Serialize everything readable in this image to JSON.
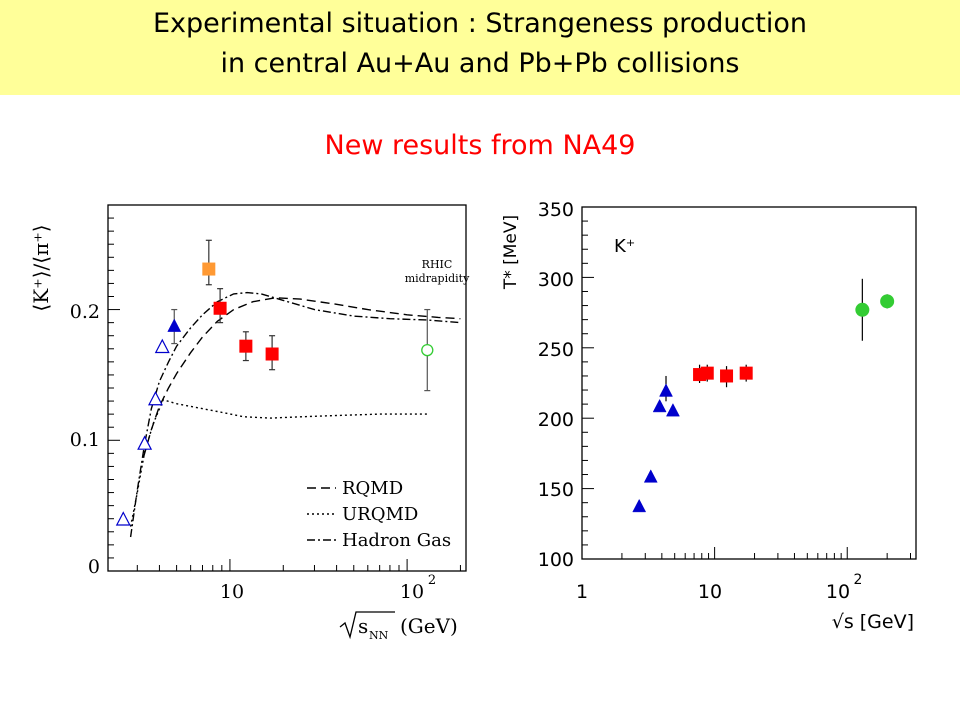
{
  "header": {
    "title_line1": "Experimental situation : Strangeness production",
    "title_line2": "in central Au+Au and  Pb+Pb collisions",
    "subtitle": "New results from  NA49"
  },
  "colors": {
    "header_bg": "#ffff99",
    "subtitle": "#ff0000",
    "red": "#ff0000",
    "orange": "#ff9933",
    "blue": "#0000cc",
    "green": "#33cc33"
  },
  "chart_data": [
    {
      "type": "scatter",
      "xscale": "log",
      "xlabel_root": "s",
      "xlabel_sub": "NN",
      "xlabel_unit": "(GeV)",
      "ylabel": "⟨K⁺⟩/⟨π⁺⟩",
      "xlim": [
        2.05,
        215
      ],
      "ylim": [
        0,
        0.28
      ],
      "x_ticks": [
        {
          "value": 10,
          "label": "10"
        },
        {
          "value": 100,
          "label": "10",
          "exp": "2"
        }
      ],
      "y_ticks": [
        {
          "value": 0,
          "label": "0"
        },
        {
          "value": 0.1,
          "label": "0.1"
        },
        {
          "value": 0.2,
          "label": "0.2"
        }
      ],
      "annotation": [
        "RHIC",
        "midrapidity"
      ],
      "legend_position": "bottom-right",
      "legend": [
        {
          "style": "dashed",
          "label": "RQMD"
        },
        {
          "style": "dotted",
          "label": "URQMD"
        },
        {
          "style": "dashdot",
          "label": "Hadron Gas"
        }
      ],
      "curves": [
        {
          "name": "RQMD",
          "style": "dashed",
          "x": [
            3.25,
            3.6,
            4.0,
            4.5,
            5.0,
            6.0,
            7.0,
            8.5,
            10.5,
            13.5,
            18,
            25,
            40,
            60,
            100,
            150,
            200
          ],
          "y": [
            0.087,
            0.108,
            0.126,
            0.14,
            0.151,
            0.167,
            0.179,
            0.191,
            0.2,
            0.206,
            0.209,
            0.208,
            0.204,
            0.2,
            0.196,
            0.194,
            0.193
          ]
        },
        {
          "name": "URQMD",
          "style": "dotted",
          "x": [
            2.75,
            3.0,
            3.3,
            3.7,
            4.2,
            5.0,
            6.5,
            8.5,
            12,
            17,
            25,
            40,
            70,
            130
          ],
          "y": [
            0.034,
            0.06,
            0.091,
            0.113,
            0.131,
            0.128,
            0.125,
            0.122,
            0.118,
            0.117,
            0.118,
            0.119,
            0.12,
            0.12
          ]
        },
        {
          "name": "Hadron Gas",
          "style": "dashdot",
          "x": [
            2.75,
            3.0,
            3.3,
            3.6,
            4.0,
            4.5,
            5.0,
            6.0,
            7.0,
            8.5,
            10.5,
            12.5,
            15,
            20,
            30,
            50,
            80,
            130,
            200
          ],
          "y": [
            0.026,
            0.062,
            0.097,
            0.124,
            0.145,
            0.16,
            0.172,
            0.186,
            0.196,
            0.206,
            0.212,
            0.213,
            0.212,
            0.207,
            0.2,
            0.195,
            0.193,
            0.192,
            0.19
          ]
        }
      ],
      "series": [
        {
          "marker": "open-triangle",
          "color": "#0000cc",
          "points": [
            {
              "x": 2.5,
              "y": 0.039
            },
            {
              "x": 3.3,
              "y": 0.097
            },
            {
              "x": 3.8,
              "y": 0.131
            },
            {
              "x": 4.15,
              "y": 0.171
            }
          ]
        },
        {
          "marker": "filled-triangle",
          "color": "#0000cc",
          "points": [
            {
              "x": 4.85,
              "y": 0.187,
              "lo": 0.174,
              "hi": 0.2
            }
          ]
        },
        {
          "marker": "filled-square",
          "color": "#ff9933",
          "points": [
            {
              "x": 7.6,
              "y": 0.231,
              "lo": 0.219,
              "hi": 0.253
            }
          ]
        },
        {
          "marker": "filled-square",
          "color": "#ff0000",
          "points": [
            {
              "x": 8.8,
              "y": 0.201,
              "lo": 0.19,
              "hi": 0.216
            },
            {
              "x": 12.3,
              "y": 0.172,
              "lo": 0.161,
              "hi": 0.183
            },
            {
              "x": 17.3,
              "y": 0.166,
              "lo": 0.154,
              "hi": 0.18
            }
          ]
        },
        {
          "marker": "open-circle",
          "color": "#33cc33",
          "points": [
            {
              "x": 130,
              "y": 0.169,
              "lo": 0.138,
              "hi": 0.2
            }
          ]
        }
      ]
    },
    {
      "type": "scatter",
      "xscale": "log",
      "xlabel": "√s [GeV]",
      "ylabel": "T* [MeV]",
      "xlim": [
        1,
        330
      ],
      "ylim": [
        100,
        350
      ],
      "x_ticks": [
        {
          "value": 1,
          "label": "1"
        },
        {
          "value": 10,
          "label": "10"
        },
        {
          "value": 100,
          "label": "10",
          "exp": "2"
        }
      ],
      "y_ticks": [
        100,
        150,
        200,
        250,
        300,
        350
      ],
      "annotation": [
        "K⁺"
      ],
      "series": [
        {
          "marker": "filled-triangle",
          "color": "#0000cc",
          "points": [
            {
              "x": 2.7,
              "y": 137
            },
            {
              "x": 3.3,
              "y": 158
            },
            {
              "x": 3.85,
              "y": 208
            },
            {
              "x": 4.3,
              "y": 219,
              "lo": 212,
              "hi": 230
            },
            {
              "x": 4.85,
              "y": 205
            }
          ]
        },
        {
          "marker": "filled-square",
          "color": "#ff0000",
          "points": [
            {
              "x": 7.7,
              "y": 231,
              "lo": 225,
              "hi": 238
            },
            {
              "x": 8.8,
              "y": 232,
              "lo": 226,
              "hi": 238
            },
            {
              "x": 12.3,
              "y": 230,
              "lo": 222,
              "hi": 237
            },
            {
              "x": 17.3,
              "y": 232,
              "lo": 226,
              "hi": 238
            }
          ]
        },
        {
          "marker": "filled-circle",
          "color": "#33cc33",
          "points": [
            {
              "x": 130,
              "y": 277,
              "lo": 255,
              "hi": 299
            },
            {
              "x": 200,
              "y": 283,
              "lo": 278,
              "hi": 288
            }
          ]
        }
      ]
    }
  ]
}
